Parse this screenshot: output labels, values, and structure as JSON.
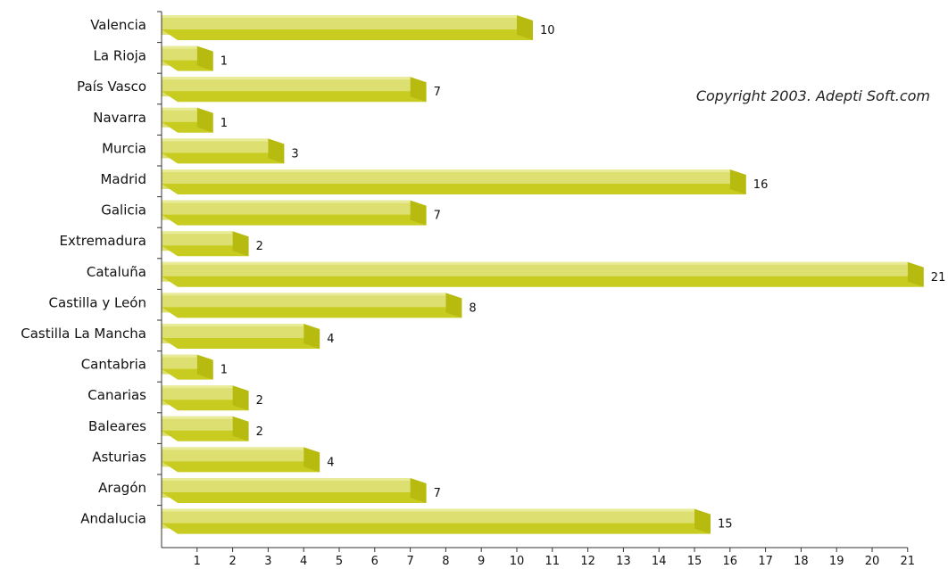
{
  "copyright": "Copyright 2003. Adepti Soft.com",
  "colors": {
    "bar_front": "#dde070",
    "bar_top": "#e8eb98",
    "bar_side": "#c8cc20",
    "bar_shade": "#b7bb10",
    "axis": "#333333"
  },
  "chart_data": {
    "type": "bar",
    "orientation": "horizontal",
    "title": "",
    "xlabel": "",
    "ylabel": "",
    "xlim": [
      0,
      21
    ],
    "x_ticks": [
      1,
      2,
      3,
      4,
      5,
      6,
      7,
      8,
      9,
      10,
      11,
      12,
      13,
      14,
      15,
      16,
      17,
      18,
      19,
      20,
      21
    ],
    "grid": false,
    "legend": "none",
    "categories": [
      "Valencia",
      "La Rioja",
      "País Vasco",
      "Navarra",
      "Murcia",
      "Madrid",
      "Galicia",
      "Extremadura",
      "Cataluña",
      "Castilla y León",
      "Castilla La Mancha",
      "Cantabria",
      "Canarias",
      "Baleares",
      "Asturias",
      "Aragón",
      "Andalucia"
    ],
    "values": [
      10,
      1,
      7,
      1,
      3,
      16,
      7,
      2,
      21,
      8,
      4,
      1,
      2,
      2,
      4,
      7,
      15
    ]
  }
}
